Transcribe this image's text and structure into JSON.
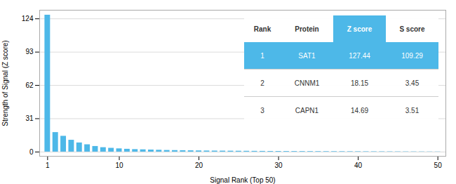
{
  "chart_data": {
    "type": "bar",
    "xlabel": "Signal Rank (Top 50)",
    "ylabel": "Strength of Signal (Z score)",
    "x": [
      1,
      2,
      3,
      4,
      5,
      6,
      7,
      8,
      9,
      10,
      11,
      12,
      13,
      14,
      15,
      16,
      17,
      18,
      19,
      20,
      21,
      22,
      23,
      24,
      25,
      26,
      27,
      28,
      29,
      30,
      31,
      32,
      33,
      34,
      35,
      36,
      37,
      38,
      39,
      40,
      41,
      42,
      43,
      44,
      45,
      46,
      47,
      48,
      49,
      50
    ],
    "values": [
      127.44,
      18.15,
      14.69,
      11.0,
      8.5,
      6.8,
      5.2,
      4.1,
      3.5,
      3.0,
      2.6,
      2.3,
      2.1,
      1.9,
      1.7,
      1.5,
      1.4,
      1.3,
      1.2,
      1.1,
      1.0,
      0.95,
      0.9,
      0.85,
      0.8,
      0.75,
      0.7,
      0.65,
      0.6,
      0.58,
      0.55,
      0.52,
      0.5,
      0.48,
      0.46,
      0.44,
      0.42,
      0.4,
      0.38,
      0.36,
      0.34,
      0.32,
      0.3,
      0.28,
      0.26,
      0.24,
      0.22,
      0.2,
      0.18,
      0.16
    ],
    "color": "#4db8e8",
    "xlim": [
      0,
      51
    ],
    "xticks": [
      1,
      10,
      20,
      30,
      40,
      50
    ],
    "ylim": [
      -4,
      132
    ],
    "yticks": [
      0,
      31,
      62,
      93,
      124
    ],
    "grid": true,
    "table": [
      [
        "Rank",
        "Protein",
        "Z score",
        "S score"
      ],
      [
        "1",
        "SAT1",
        "127.44",
        "109.29"
      ],
      [
        "2",
        "CNNM1",
        "18.15",
        "3.45"
      ],
      [
        "3",
        "CAPN1",
        "14.69",
        "3.51"
      ]
    ]
  }
}
